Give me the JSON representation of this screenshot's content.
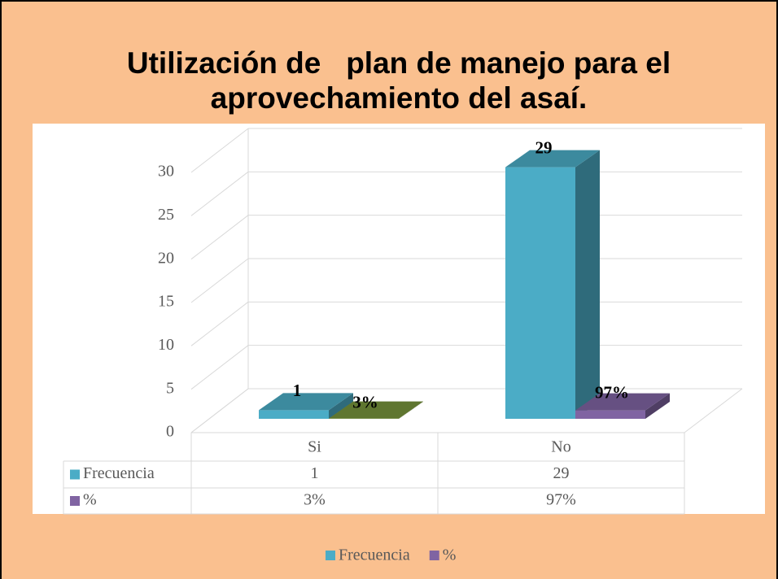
{
  "chart_data": {
    "type": "bar3d",
    "title": [
      "Utilización de   plan de manejo para el",
      "aprovechamiento del asaí."
    ],
    "categories": [
      "Si",
      "No"
    ],
    "series": [
      {
        "name": "Frecuencia",
        "color": "#4bacc6",
        "values": [
          1,
          29
        ],
        "value_labels": [
          "1",
          "29"
        ]
      },
      {
        "name": "%",
        "color": "#8064a2",
        "colors": [
          "#77933c",
          "#8064a2"
        ],
        "values": [
          0.03,
          0.97
        ],
        "value_labels": [
          "3%",
          "97%"
        ]
      }
    ],
    "ylim": [
      0,
      30
    ],
    "yticks": [
      0,
      5,
      10,
      15,
      20,
      25,
      30
    ],
    "grid": true,
    "legend": "bottom",
    "data_table": true
  }
}
